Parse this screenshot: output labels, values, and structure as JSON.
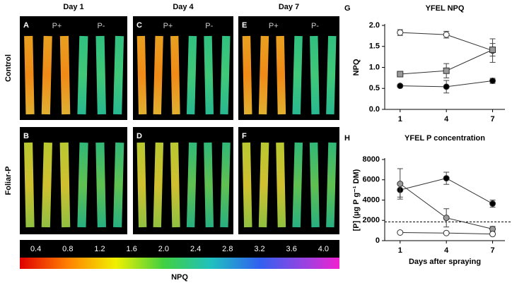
{
  "figure": {
    "columns": [
      "Day 1",
      "Day 4",
      "Day 7"
    ],
    "rows": [
      "Control",
      "Foliar-P"
    ],
    "treatment_labels": [
      "P+",
      "P-"
    ],
    "panels": [
      "A",
      "C",
      "E",
      "B",
      "D",
      "F"
    ]
  },
  "colorbar": {
    "label": "NPQ",
    "ticks": [
      0.4,
      0.8,
      1.2,
      1.6,
      {
        "value": 2.0,
        "label": "2.0"
      },
      2.4,
      2.8,
      3.2,
      3.6,
      {
        "value": 4.0,
        "label": "4.0"
      }
    ]
  },
  "chart_data": [
    {
      "type": "line",
      "panel": "G",
      "title": "YFEL NPQ",
      "y_label": "NPQ",
      "x": [
        1,
        4,
        7
      ],
      "xlim": [
        0,
        7.8
      ],
      "xticks": [
        1,
        4,
        7
      ],
      "ylim": [
        0,
        2
      ],
      "yticks": [
        {
          "value": 0,
          "label": "0.0"
        },
        0.5,
        {
          "value": 1,
          "label": "1.0"
        },
        1.5,
        {
          "value": 2,
          "label": "2.0"
        }
      ],
      "series": [
        {
          "color": "#ffffff",
          "marker": "circle",
          "values": [
            1.83,
            1.78,
            1.4
          ],
          "errors": [
            0.07,
            0.08,
            0.28
          ]
        },
        {
          "color": "#999999",
          "marker": "square",
          "values": [
            0.84,
            0.92,
            1.42
          ],
          "errors": [
            0.03,
            0.17,
            0.15
          ]
        },
        {
          "color": "#000000",
          "marker": "circle",
          "values": [
            0.56,
            0.54,
            0.68
          ],
          "errors": [
            0.03,
            0.15,
            0.06
          ]
        }
      ]
    },
    {
      "type": "line",
      "panel": "H",
      "title": "YFEL P concentration",
      "y_label": "[P] (µg P g⁻¹ DM)",
      "x_label": "Days after spraying",
      "x": [
        1,
        4,
        7
      ],
      "xlim": [
        0,
        7.8
      ],
      "xticks": [
        1,
        4,
        7
      ],
      "ylim": [
        0,
        8000
      ],
      "yticks": [
        0,
        2000,
        4000,
        6000,
        8000
      ],
      "reference_line": 1850,
      "series": [
        {
          "color": "#000000",
          "marker": "circle",
          "values": [
            5000,
            6150,
            3650
          ],
          "errors": [
            700,
            600,
            350
          ]
        },
        {
          "color": "#999999",
          "marker": "circle",
          "values": [
            5600,
            2250,
            1150
          ],
          "errors": [
            1500,
            900,
            250
          ]
        },
        {
          "color": "#ffffff",
          "marker": "circle",
          "values": [
            800,
            750,
            650
          ],
          "errors": [
            50,
            50,
            50
          ]
        }
      ]
    }
  ]
}
